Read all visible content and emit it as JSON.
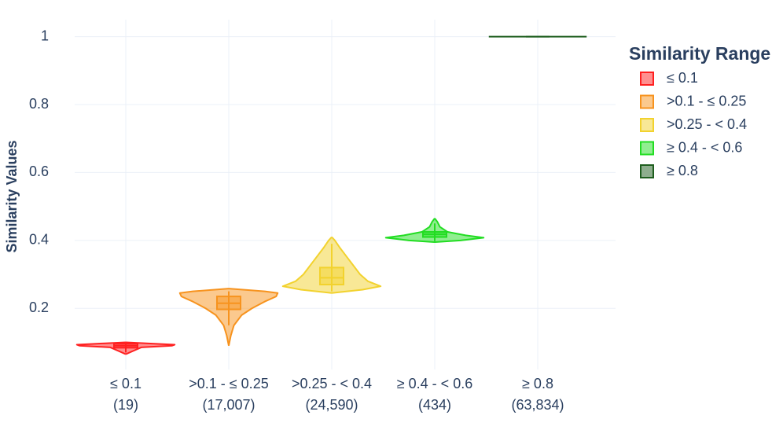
{
  "chart_data": {
    "type": "violin",
    "y_label": "Similarity Values",
    "legend_title": "Similarity Range",
    "legend_position": "right",
    "grid": true,
    "ylim": [
      0.02,
      1.05
    ],
    "yticks": [
      0.2,
      0.4,
      0.6,
      0.8,
      1
    ],
    "categories": [
      "≤ 0.1",
      ">0.1 - ≤ 0.25",
      ">0.25 - < 0.4",
      "≥ 0.4 - < 0.6",
      "≥ 0.8"
    ],
    "category_counts": [
      {
        "value": 19,
        "label": "(19)"
      },
      {
        "value": 17007,
        "label": "(17,007)"
      },
      {
        "value": 24590,
        "label": "(24,590)"
      },
      {
        "value": 434,
        "label": "(434)"
      },
      {
        "value": 63834,
        "label": "(63,834)"
      }
    ],
    "series": [
      {
        "name": "≤ 0.1",
        "color": "#ff2020",
        "density": {
          "y": [
            0.065,
            0.075,
            0.085,
            0.09,
            0.093,
            0.097,
            0.1
          ],
          "width": [
            0,
            0.15,
            0.3,
            0.9,
            0.95,
            0.4,
            0
          ]
        },
        "box": {
          "lower": 0.07,
          "q1": 0.084,
          "median": 0.09,
          "q3": 0.096,
          "upper": 0.1
        }
      },
      {
        "name": ">0.1 - ≤ 0.25",
        "color": "#f7931e",
        "density": {
          "y": [
            0.09,
            0.12,
            0.15,
            0.18,
            0.2,
            0.22,
            0.235,
            0.245,
            0.25,
            0.258
          ],
          "width": [
            0,
            0.04,
            0.1,
            0.25,
            0.45,
            0.7,
            0.92,
            0.95,
            0.7,
            0
          ]
        },
        "box": {
          "lower": 0.15,
          "q1": 0.197,
          "median": 0.215,
          "q3": 0.235,
          "upper": 0.25
        }
      },
      {
        "name": ">0.25 - < 0.4",
        "color": "#f2d22e",
        "density": {
          "y": [
            0.245,
            0.255,
            0.265,
            0.28,
            0.3,
            0.32,
            0.35,
            0.38,
            0.4,
            0.41
          ],
          "width": [
            0,
            0.6,
            0.95,
            0.7,
            0.55,
            0.45,
            0.3,
            0.15,
            0.06,
            0
          ]
        },
        "box": {
          "lower": 0.25,
          "q1": 0.27,
          "median": 0.29,
          "q3": 0.32,
          "upper": 0.39
        }
      },
      {
        "name": "≥ 0.4 - < 0.6",
        "color": "#22dd22",
        "density": {
          "y": [
            0.395,
            0.4,
            0.408,
            0.415,
            0.425,
            0.44,
            0.455,
            0.465
          ],
          "width": [
            0,
            0.5,
            0.95,
            0.6,
            0.25,
            0.1,
            0.05,
            0
          ]
        },
        "box": {
          "lower": 0.398,
          "q1": 0.41,
          "median": 0.418,
          "q3": 0.425,
          "upper": 0.45
        }
      },
      {
        "name": "≥ 0.8",
        "color": "#1e5e1e",
        "density": {
          "y": [
            1
          ],
          "width": [
            0.95
          ]
        },
        "box": {
          "lower": 1,
          "q1": 1,
          "median": 1,
          "q3": 1,
          "upper": 1
        }
      }
    ]
  }
}
